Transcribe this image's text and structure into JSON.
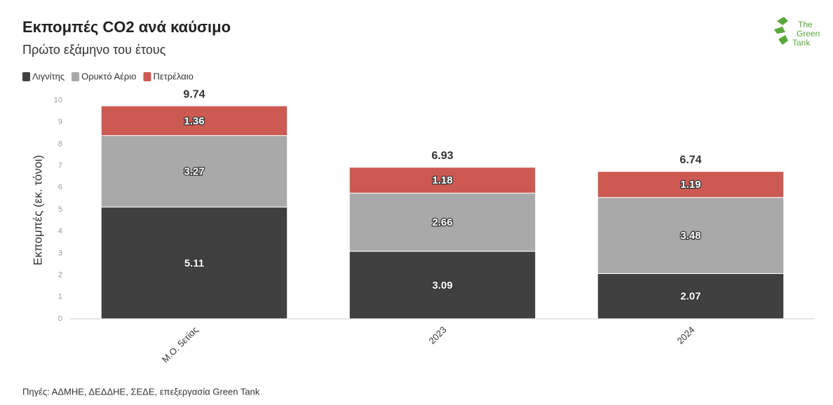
{
  "chart_data": {
    "type": "stacked-bar",
    "title": "Εκπομπές CO2 ανά καύσιμο",
    "subtitle": "Πρώτο εξάμηνο του έτους",
    "y_label": "Εκπομπές (εκ. τόνοι)",
    "source": "Πηγές: ΑΔΜΗΕ, ΔΕΔΔΗΕ, ΣΕΔΕ, επεξεργασία Green Tank",
    "logo": [
      "The",
      "Green",
      "Tank"
    ],
    "categories": [
      "Μ.Ο. 5ετίας",
      "2023",
      "2024"
    ],
    "series": [
      {
        "name": "Λιγνίτης",
        "color": "#404040",
        "values": [
          5.11,
          3.09,
          2.07
        ]
      },
      {
        "name": "Ορυκτό Αέριο",
        "color": "#a9a9a9",
        "values": [
          3.27,
          2.66,
          3.48
        ]
      },
      {
        "name": "Πετρέλαιο",
        "color": "#cd5a52",
        "values": [
          1.36,
          1.18,
          1.19
        ]
      }
    ],
    "totals": [
      9.74,
      6.93,
      6.74
    ],
    "ylim": [
      0,
      10
    ],
    "yticks": [
      0,
      1,
      2,
      3,
      4,
      5,
      6,
      7,
      8,
      9,
      10
    ],
    "grid": false,
    "legend": "top-left"
  }
}
